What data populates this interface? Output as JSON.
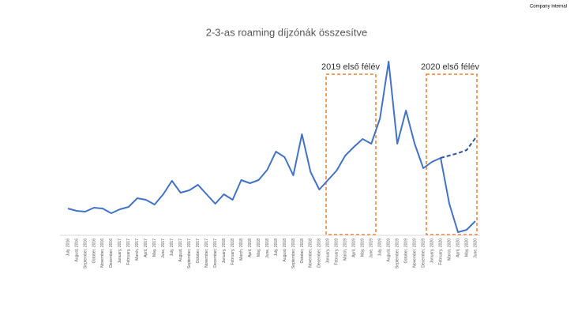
{
  "chart_data": {
    "type": "line",
    "corner_note": "Company internal",
    "title": "2-3-as roaming díjzónák összesítve",
    "annotations": [
      "2019 első félév",
      "2020 első félév"
    ],
    "categories": [
      "July, 2016",
      "August, 2016",
      "September, 2016",
      "October, 2016",
      "November, 2016",
      "December, 2016",
      "January, 2017",
      "February, 2017",
      "March, 2017",
      "April, 2017",
      "May, 2017",
      "June, 2017",
      "July, 2017",
      "August, 2017",
      "September, 2017",
      "October, 2017",
      "November, 2017",
      "December, 2017",
      "January, 2018",
      "February, 2018",
      "March, 2018",
      "April, 2018",
      "May, 2018",
      "June, 2018",
      "July, 2018",
      "August, 2018",
      "September, 2018",
      "October, 2018",
      "November, 2018",
      "December, 2018",
      "January, 2019",
      "February, 2019",
      "March, 2019",
      "April, 2019",
      "May, 2019",
      "June, 2019",
      "July, 2019",
      "August, 2019",
      "September, 2019",
      "October, 2019",
      "November, 2019",
      "December, 2019",
      "January, 2020",
      "February, 2020",
      "March, 2020",
      "April, 2020",
      "May, 2020",
      "June, 2020"
    ],
    "series": [
      {
        "color": "#4472c4",
        "dashed": false,
        "values": [
          34,
          31,
          30,
          35,
          34,
          28,
          33,
          36,
          47,
          45,
          39,
          52,
          69,
          54,
          57,
          64,
          52,
          40,
          52,
          45,
          70,
          66,
          70,
          83,
          106,
          99,
          76,
          128,
          80,
          58,
          70,
          82,
          101,
          112,
          122,
          116,
          148,
          220,
          116,
          158,
          116,
          85,
          93,
          98,
          40,
          4,
          7,
          18
        ]
      },
      {
        "color": "#2f5597",
        "dashed": true,
        "values": [
          null,
          null,
          null,
          null,
          null,
          null,
          null,
          null,
          null,
          null,
          null,
          null,
          null,
          null,
          null,
          null,
          null,
          null,
          null,
          null,
          null,
          null,
          null,
          null,
          null,
          null,
          null,
          null,
          null,
          null,
          null,
          null,
          null,
          null,
          null,
          null,
          null,
          null,
          null,
          null,
          null,
          null,
          null,
          98,
          101,
          104,
          108,
          123
        ]
      }
    ],
    "ylim": [
      0,
      225
    ]
  }
}
